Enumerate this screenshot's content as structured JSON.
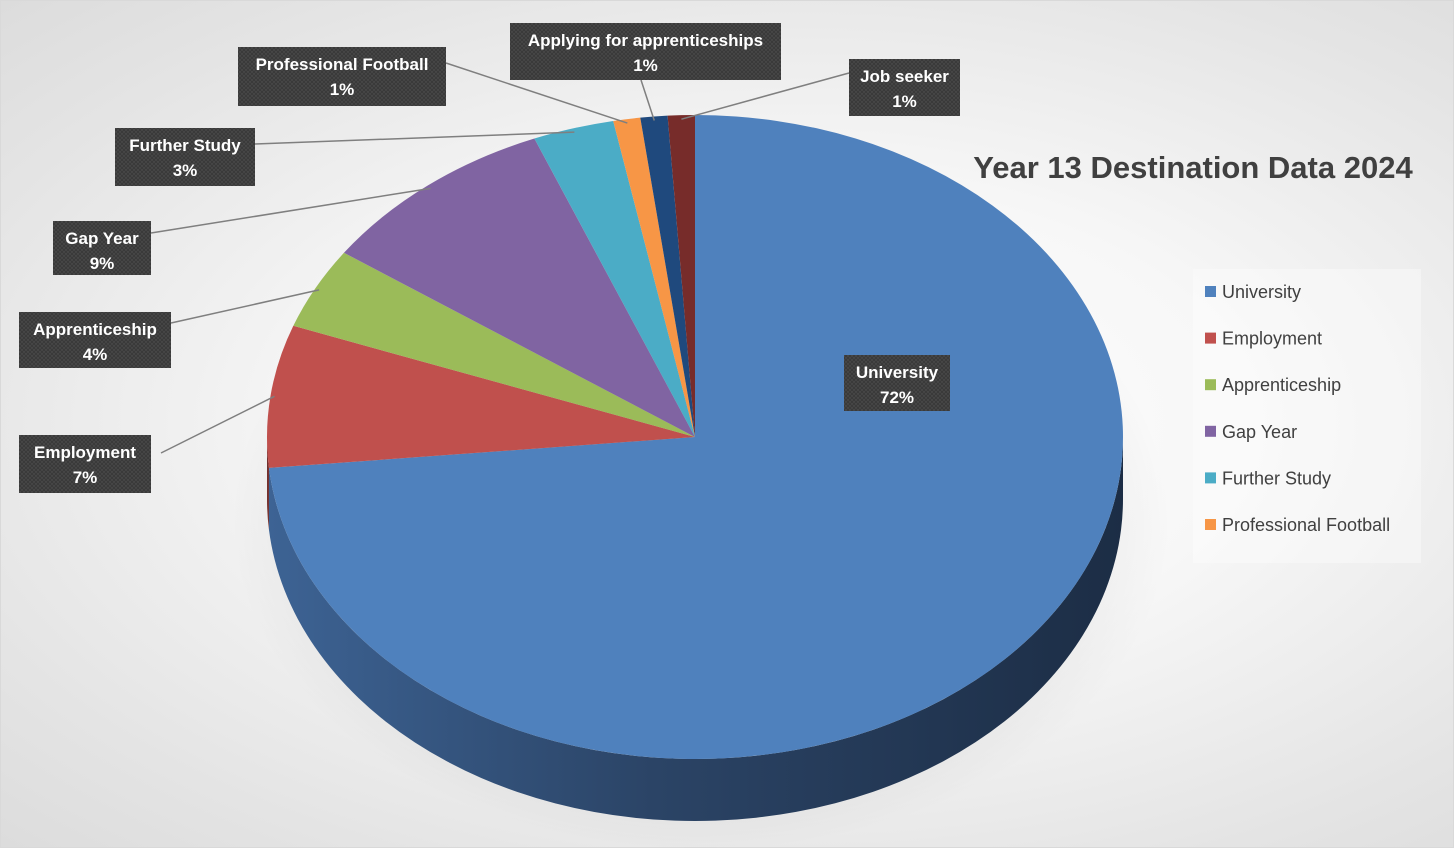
{
  "chart_data": {
    "type": "pie",
    "title": "Year 13 Destination Data 2024",
    "slices": [
      {
        "name": "University",
        "value": 72,
        "label": "72%",
        "color": "#4f81bd"
      },
      {
        "name": "Employment",
        "value": 7,
        "label": "7%",
        "color": "#c0504d"
      },
      {
        "name": "Apprenticeship",
        "value": 4,
        "label": "4%",
        "color": "#9bbb59"
      },
      {
        "name": "Gap Year",
        "value": 9,
        "label": "9%",
        "color": "#8064a2"
      },
      {
        "name": "Further Study",
        "value": 3,
        "label": "3%",
        "color": "#4bacc6"
      },
      {
        "name": "Professional Football",
        "value": 1,
        "label": "1%",
        "color": "#f79646"
      },
      {
        "name": "Applying for apprenticeships",
        "value": 1,
        "label": "1%",
        "color": "#1f497d"
      },
      {
        "name": "Job seeker",
        "value": 1,
        "label": "1%",
        "color": "#772c2a"
      }
    ],
    "legend": {
      "placement": "right",
      "entries": [
        "University",
        "Employment",
        "Apprenticeship",
        "Gap Year",
        "Further Study",
        "Professional Football"
      ]
    },
    "style": "3d-pie"
  }
}
